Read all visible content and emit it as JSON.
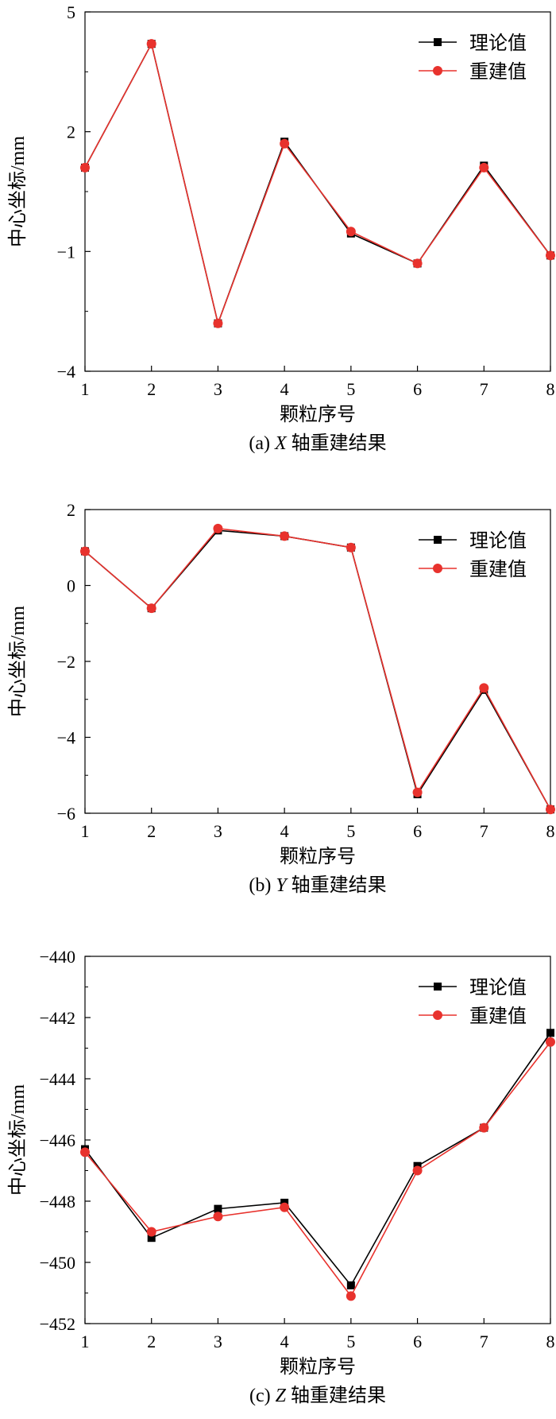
{
  "chart_data": [
    {
      "type": "line",
      "caption_prefix": "(a)",
      "caption_axis": "X",
      "caption_suffix": "轴重建结果",
      "xlabel": "颗粒序号",
      "ylabel": "中心坐标/mm",
      "x": [
        1,
        2,
        3,
        4,
        5,
        6,
        7,
        8
      ],
      "ylim": [
        -4,
        5
      ],
      "yticks": [
        5,
        2,
        -1,
        -4
      ],
      "series": [
        {
          "name": "理论值",
          "marker": "square",
          "color": "#000000",
          "values": [
            1.1,
            4.2,
            -2.8,
            1.75,
            -0.55,
            -1.3,
            1.15,
            -1.1
          ]
        },
        {
          "name": "重建值",
          "marker": "circle",
          "color": "#e8322d",
          "values": [
            1.1,
            4.2,
            -2.8,
            1.7,
            -0.5,
            -1.3,
            1.1,
            -1.1
          ]
        }
      ]
    },
    {
      "type": "line",
      "caption_prefix": "(b)",
      "caption_axis": "Y",
      "caption_suffix": "轴重建结果",
      "xlabel": "颗粒序号",
      "ylabel": "中心坐标/mm",
      "x": [
        1,
        2,
        3,
        4,
        5,
        6,
        7,
        8
      ],
      "ylim": [
        -6,
        2
      ],
      "yticks": [
        2,
        0,
        -2,
        -4,
        -6
      ],
      "series": [
        {
          "name": "理论值",
          "marker": "square",
          "color": "#000000",
          "values": [
            0.9,
            -0.6,
            1.45,
            1.3,
            1.0,
            -5.5,
            -2.75,
            -5.9
          ]
        },
        {
          "name": "重建值",
          "marker": "circle",
          "color": "#e8322d",
          "values": [
            0.9,
            -0.6,
            1.5,
            1.3,
            1.0,
            -5.45,
            -2.7,
            -5.9
          ]
        }
      ]
    },
    {
      "type": "line",
      "caption_prefix": "(c)",
      "caption_axis": "Z",
      "caption_suffix": "轴重建结果",
      "xlabel": "颗粒序号",
      "ylabel": "中心坐标/mm",
      "x": [
        1,
        2,
        3,
        4,
        5,
        6,
        7,
        8
      ],
      "ylim": [
        -452,
        -440
      ],
      "yticks": [
        -440,
        -442,
        -444,
        -446,
        -448,
        -450,
        -452
      ],
      "series": [
        {
          "name": "理论值",
          "marker": "square",
          "color": "#000000",
          "values": [
            -446.3,
            -449.2,
            -448.25,
            -448.05,
            -450.75,
            -446.85,
            -445.6,
            -442.5
          ]
        },
        {
          "name": "重建值",
          "marker": "circle",
          "color": "#e8322d",
          "values": [
            -446.4,
            -449.0,
            -448.5,
            -448.2,
            -451.1,
            -447.0,
            -445.6,
            -442.8
          ]
        }
      ]
    }
  ]
}
